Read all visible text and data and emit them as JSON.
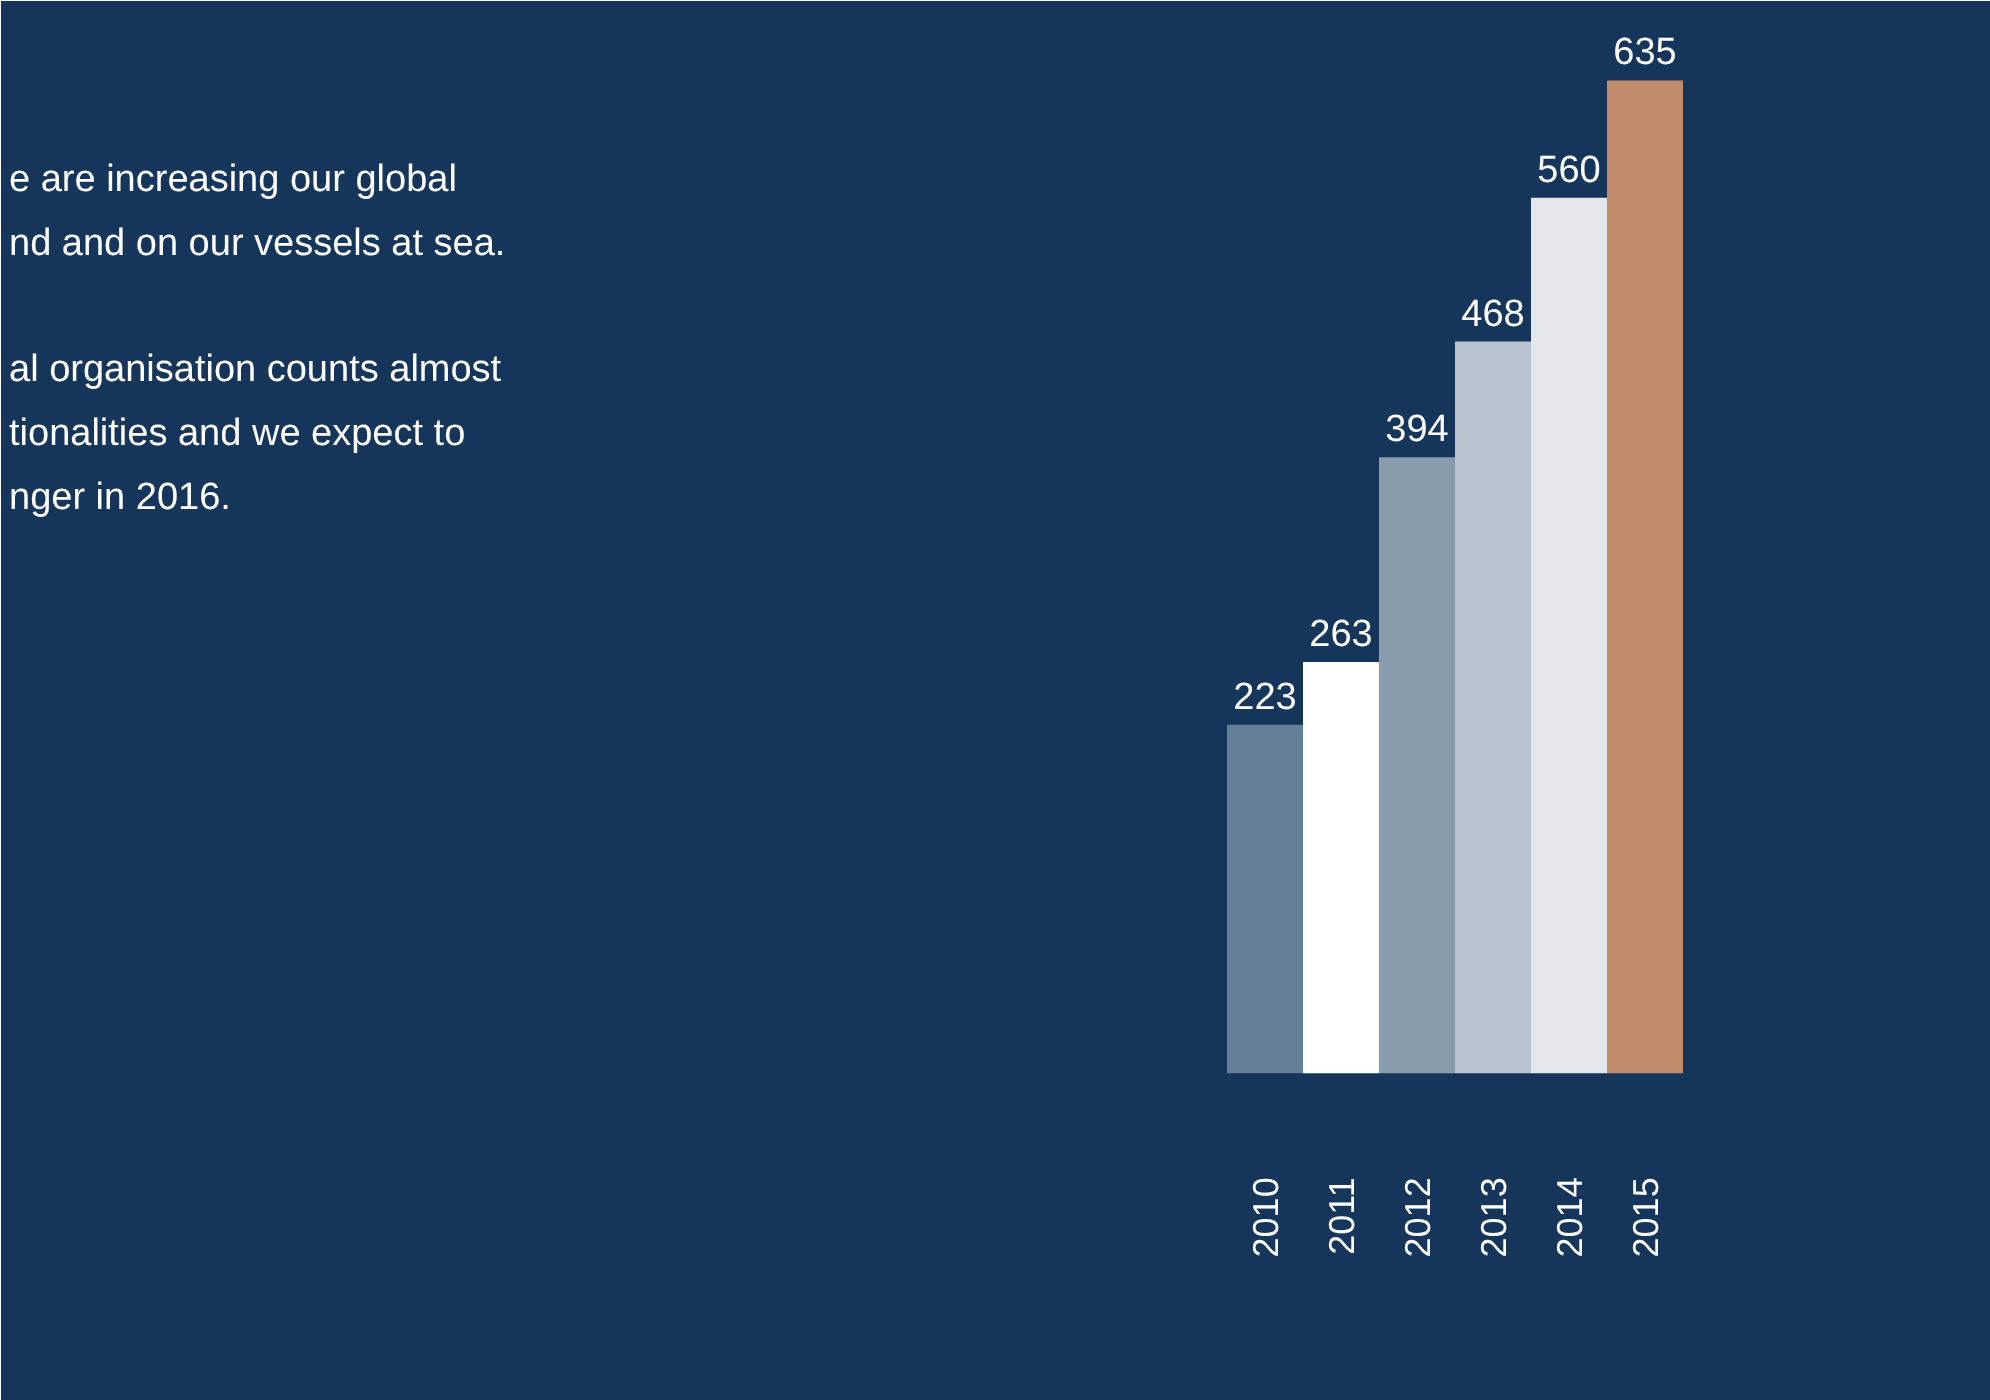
{
  "chart_data": {
    "type": "bar",
    "categories": [
      "2010",
      "2011",
      "2012",
      "2013",
      "2014",
      "2015"
    ],
    "values": [
      223,
      263,
      394,
      468,
      560,
      635
    ],
    "colors": [
      "#667f99",
      "#ffffff",
      "#8a9bab",
      "#b8c3ce",
      "#e4e8ec",
      "#c08c6c"
    ],
    "data_labels": true,
    "annotations": [
      "e are increasing our global",
      "nd and on our vessels at sea.",
      "al organisation counts almost",
      "tionalities and we expect to",
      "nger in 2016."
    ]
  }
}
